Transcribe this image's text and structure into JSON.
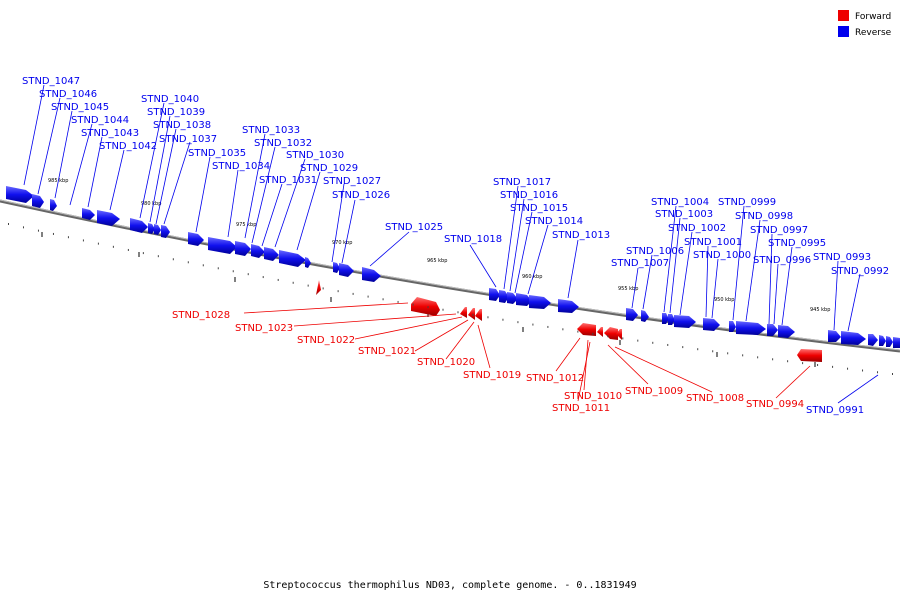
{
  "legend": [
    {
      "label": "Forward",
      "color": "#ee0000"
    },
    {
      "label": "Reverse",
      "color": "#0000ee"
    }
  ],
  "caption": "Streptococcus thermophilus ND03, complete genome. - 0..1831949",
  "ticks": [
    "985 kbp",
    "980 kbp",
    "975 kbp",
    "970 kbp",
    "965 kbp",
    "960 kbp",
    "955 kbp",
    "950 kbp",
    "945 kbp"
  ],
  "reverse_genes": [
    "STND_1047",
    "STND_1046",
    "STND_1045",
    "STND_1044",
    "STND_1043",
    "STND_1042",
    "STND_1040",
    "STND_1039",
    "STND_1038",
    "STND_1037",
    "STND_1035",
    "STND_1034",
    "STND_1033",
    "STND_1032",
    "STND_1031",
    "STND_1030",
    "STND_1029",
    "STND_1027",
    "STND_1026",
    "STND_1025",
    "STND_1018",
    "STND_1017",
    "STND_1016",
    "STND_1015",
    "STND_1014",
    "STND_1013",
    "STND_1007",
    "STND_1006",
    "STND_1004",
    "STND_1003",
    "STND_1002",
    "STND_1001",
    "STND_1000",
    "STND_0999",
    "STND_0998",
    "STND_0997",
    "STND_0996",
    "STND_0995",
    "STND_0993",
    "STND_0992",
    "STND_0991"
  ],
  "forward_genes": [
    "STND_1028",
    "STND_1023",
    "STND_1022",
    "STND_1021",
    "STND_1020",
    "STND_1019",
    "STND_1012",
    "STND_1010",
    "STND_1011",
    "STND_1009",
    "STND_1008",
    "STND_0994"
  ]
}
